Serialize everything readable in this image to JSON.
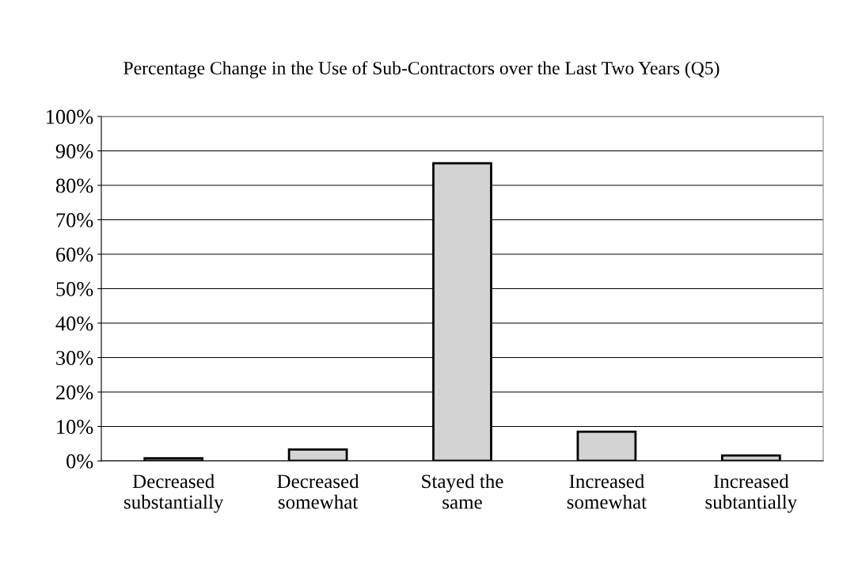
{
  "chart_data": {
    "type": "bar",
    "title": "Percentage Change in the Use of Sub-Contractors over the Last Two Years (Q5)",
    "categories": [
      "Decreased\nsubstantially",
      "Decreased\nsomewhat",
      "Stayed the\nsame",
      "Increased\nsomewhat",
      "Increased\nsubtantially"
    ],
    "values": [
      0.8,
      3.3,
      86.4,
      8.5,
      1.6
    ],
    "color": "#d3d3d3",
    "ylim": [
      0,
      100
    ],
    "yticks": [
      {
        "value": 0,
        "label": "0%"
      },
      {
        "value": 10,
        "label": "10%"
      },
      {
        "value": 20,
        "label": "20%"
      },
      {
        "value": 30,
        "label": "30%"
      },
      {
        "value": 40,
        "label": "40%"
      },
      {
        "value": 50,
        "label": "50%"
      },
      {
        "value": 60,
        "label": "60%"
      },
      {
        "value": 70,
        "label": "70%"
      },
      {
        "value": 80,
        "label": "80%"
      },
      {
        "value": 90,
        "label": "90%"
      },
      {
        "value": 100,
        "label": "100%"
      }
    ],
    "grid": "y",
    "legend": false
  }
}
